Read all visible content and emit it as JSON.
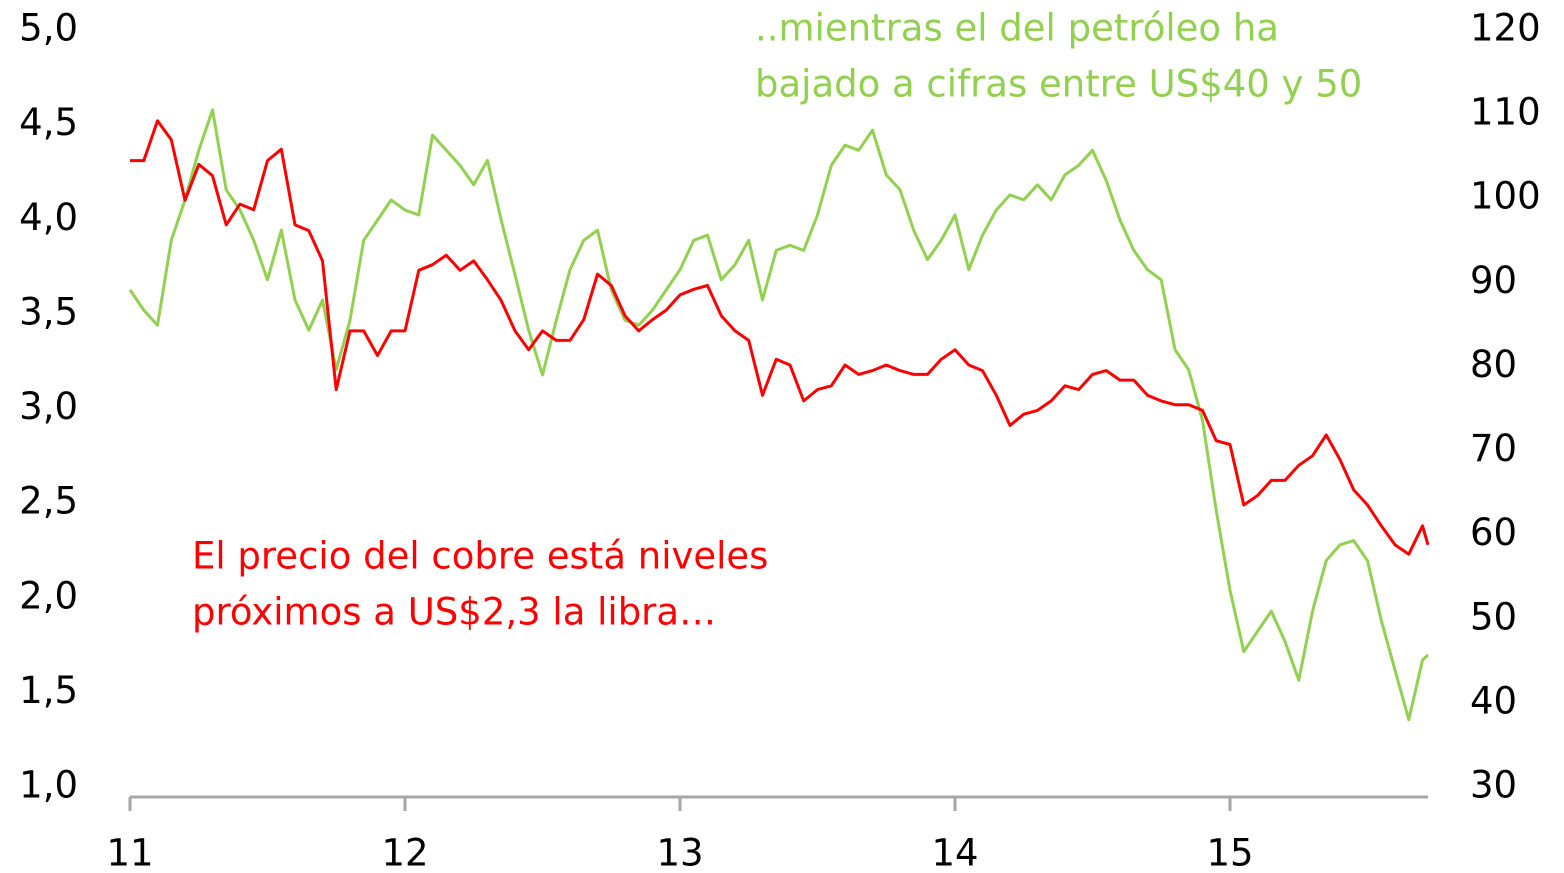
{
  "chart_data": {
    "type": "line",
    "x": [
      11.0,
      11.05,
      11.1,
      11.15,
      11.2,
      11.25,
      11.3,
      11.35,
      11.4,
      11.45,
      11.5,
      11.55,
      11.6,
      11.65,
      11.7,
      11.75,
      11.8,
      11.85,
      11.9,
      11.95,
      12.0,
      12.05,
      12.1,
      12.15,
      12.2,
      12.25,
      12.3,
      12.35,
      12.4,
      12.45,
      12.5,
      12.55,
      12.6,
      12.65,
      12.7,
      12.75,
      12.8,
      12.85,
      12.9,
      12.95,
      13.0,
      13.05,
      13.1,
      13.15,
      13.2,
      13.25,
      13.3,
      13.35,
      13.4,
      13.45,
      13.5,
      13.55,
      13.6,
      13.65,
      13.7,
      13.75,
      13.8,
      13.85,
      13.9,
      13.95,
      14.0,
      14.05,
      14.1,
      14.15,
      14.2,
      14.25,
      14.3,
      14.35,
      14.4,
      14.45,
      14.5,
      14.55,
      14.6,
      14.65,
      14.7,
      14.75,
      14.8,
      14.85,
      14.9,
      14.95,
      15.0,
      15.05,
      15.1,
      15.15,
      15.2,
      15.25,
      15.3,
      15.35,
      15.4,
      15.45,
      15.5,
      15.55,
      15.6,
      15.65,
      15.7,
      15.72
    ],
    "series": [
      {
        "color": "#ff0000",
        "axis": "y",
        "values": [
          4.31,
          4.31,
          4.52,
          4.42,
          4.1,
          4.29,
          4.23,
          3.97,
          4.08,
          4.05,
          4.31,
          4.37,
          3.97,
          3.94,
          3.78,
          3.1,
          3.41,
          3.41,
          3.28,
          3.41,
          3.41,
          3.73,
          3.76,
          3.81,
          3.73,
          3.78,
          3.68,
          3.57,
          3.41,
          3.31,
          3.41,
          3.36,
          3.36,
          3.47,
          3.71,
          3.65,
          3.49,
          3.41,
          3.47,
          3.52,
          3.6,
          3.63,
          3.65,
          3.49,
          3.41,
          3.36,
          3.07,
          3.26,
          3.23,
          3.04,
          3.1,
          3.12,
          3.23,
          3.18,
          3.2,
          3.23,
          3.2,
          3.18,
          3.18,
          3.26,
          3.31,
          3.23,
          3.2,
          3.07,
          2.91,
          2.97,
          2.99,
          3.04,
          3.12,
          3.1,
          3.18,
          3.2,
          3.15,
          3.15,
          3.07,
          3.04,
          3.02,
          3.02,
          2.99,
          2.83,
          2.81,
          2.49,
          2.54,
          2.62,
          2.62,
          2.7,
          2.75,
          2.86,
          2.73,
          2.57,
          2.49,
          2.38,
          2.28,
          2.23,
          2.38,
          2.28
        ]
      },
      {
        "color": "#92d050",
        "axis": "y2",
        "values": [
          89.1,
          86.7,
          84.9,
          95.0,
          99.8,
          105.7,
          110.5,
          101.0,
          98.6,
          95.0,
          90.3,
          96.2,
          87.9,
          84.3,
          87.9,
          79.6,
          85.5,
          95.0,
          97.4,
          99.8,
          98.6,
          98.0,
          107.5,
          105.7,
          103.9,
          101.6,
          104.5,
          97.4,
          90.9,
          84.3,
          79.0,
          85.5,
          91.5,
          95.0,
          96.2,
          89.1,
          85.5,
          84.9,
          86.7,
          89.1,
          91.5,
          95.0,
          95.6,
          90.3,
          92.1,
          95.0,
          87.9,
          93.8,
          94.4,
          93.8,
          98.0,
          103.9,
          106.3,
          105.7,
          108.1,
          102.8,
          101.0,
          96.2,
          92.7,
          95.0,
          98.0,
          91.5,
          95.6,
          98.6,
          100.4,
          99.8,
          101.6,
          99.8,
          102.8,
          103.9,
          105.7,
          102.1,
          97.4,
          93.8,
          91.5,
          90.3,
          82.0,
          79.6,
          73.6,
          62.9,
          53.4,
          46.1,
          48.5,
          50.9,
          47.3,
          42.7,
          50.9,
          56.9,
          58.8,
          59.3,
          56.9,
          49.8,
          43.9,
          38.0,
          45.1,
          45.7
        ]
      }
    ],
    "annotations": [
      {
        "lines": [
          "El precio del cobre está niveles",
          "próximos a US$2,3 la libra…"
        ],
        "color": "#ff0000"
      },
      {
        "lines": [
          "..mientras el del petróleo ha",
          "bajado a cifras entre US$40 y 50"
        ],
        "color": "#92d050"
      }
    ],
    "xlim": [
      11,
      15.72
    ],
    "xticks": [
      11,
      12,
      13,
      14,
      15
    ],
    "ylim": [
      1,
      5
    ],
    "yticks": [
      {
        "value": 1,
        "label": "1,0"
      },
      {
        "value": 1.5,
        "label": "1,5"
      },
      {
        "value": 2,
        "label": "2,0"
      },
      {
        "value": 2.5,
        "label": "2,5"
      },
      {
        "value": 3,
        "label": "3,0"
      },
      {
        "value": 3.5,
        "label": "3,5"
      },
      {
        "value": 4,
        "label": "4,0"
      },
      {
        "value": 4.5,
        "label": "4,5"
      },
      {
        "value": 5,
        "label": "5,0"
      }
    ],
    "y2lim": [
      30,
      120
    ],
    "y2ticks": [
      30,
      40,
      50,
      60,
      70,
      80,
      90,
      100,
      110,
      120
    ],
    "grid": false
  }
}
